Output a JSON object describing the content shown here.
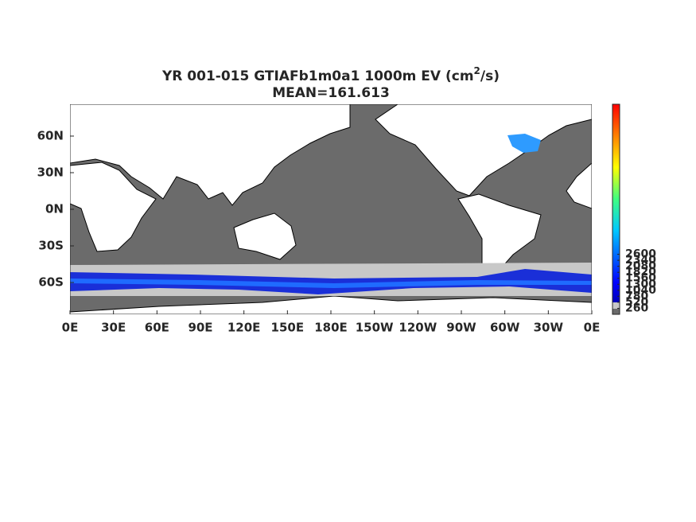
{
  "title": {
    "text": "YR 001-015 GTIAFb1m0a1 1000m EV (cm",
    "superscript": "2",
    "suffix": "/s)",
    "subtitle": "MEAN=161.613"
  },
  "x_axis": {
    "ticks": [
      "0E",
      "30E",
      "60E",
      "90E",
      "120E",
      "150E",
      "180E",
      "150W",
      "120W",
      "90W",
      "60W",
      "30W",
      "0E"
    ]
  },
  "y_axis": {
    "ticks": [
      "60N",
      "30N",
      "0N",
      "30S",
      "60S"
    ]
  },
  "colorbar": {
    "lim": [
      0,
      9100
    ],
    "ticks": [
      260,
      520,
      780,
      1040,
      1300,
      1560,
      1820,
      2080,
      2340,
      2600
    ]
  }
}
